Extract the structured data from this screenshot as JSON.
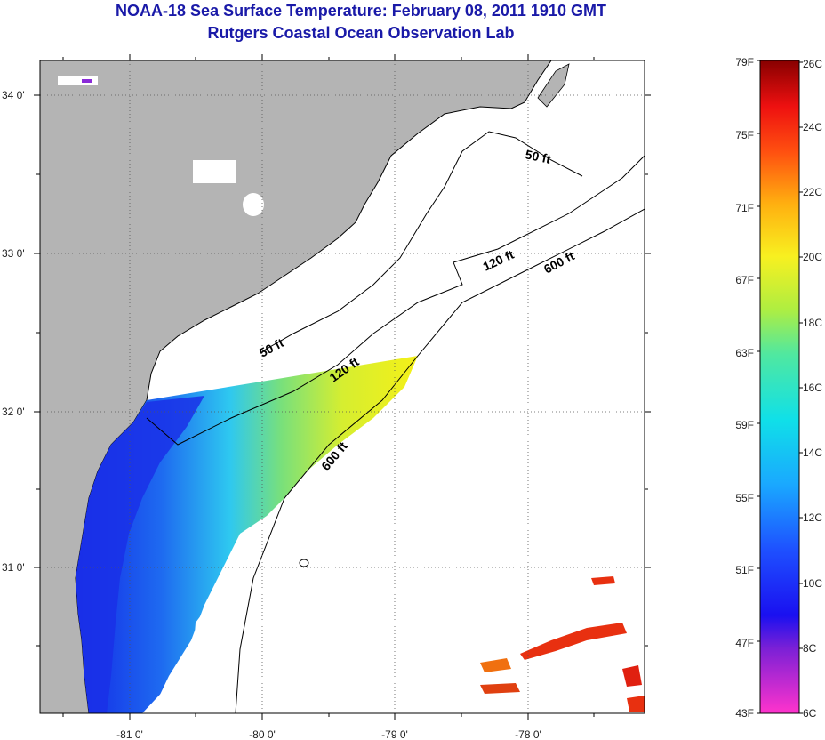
{
  "title": "NOAA-18 Sea Surface Temperature:  February 08, 2011 1910 GMT",
  "subtitle": "Rutgers Coastal Ocean Observation Lab",
  "map": {
    "lon_ticks": [
      "-81 0'",
      "-80 0'",
      "-79 0'",
      "-78 0'"
    ],
    "lat_ticks": [
      "34 0'",
      "33 0'",
      "32 0'",
      "31 0'"
    ],
    "contour_labels": [
      "50 ft",
      "120 ft",
      "600 ft",
      "50 ft",
      "120 ft",
      "600 ft"
    ],
    "colors": {
      "land": "#b4b4b4",
      "ocean_no_data": "#ffffff",
      "coast_line": "#000000"
    }
  },
  "colorbar": {
    "fahrenheit": [
      "79F",
      "75F",
      "71F",
      "67F",
      "63F",
      "59F",
      "55F",
      "51F",
      "47F",
      "43F"
    ],
    "celsius": [
      "26C",
      "24C",
      "22C",
      "20C",
      "18C",
      "16C",
      "14C",
      "12C",
      "10C",
      "8C",
      "6C"
    ],
    "range_f": [
      43,
      79
    ],
    "range_c": [
      6,
      26
    ]
  }
}
